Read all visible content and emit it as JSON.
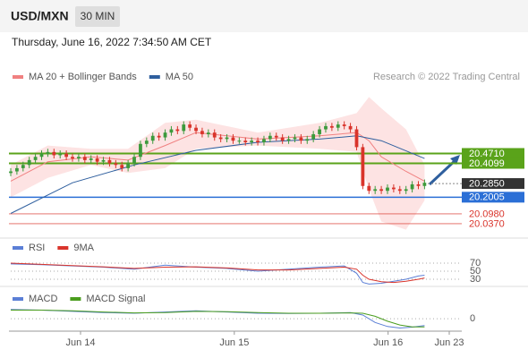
{
  "header": {
    "symbol": "USD/MXN",
    "interval": "30 MIN",
    "timestamp": "Thursday, June 16, 2022 7:34:50 AM CET"
  },
  "chart_data": [
    {
      "type": "candlestick",
      "credit": "Research © 2022 Trading Central",
      "up_color": "#3c9a3c",
      "down_color": "#d9342b",
      "xlim": [
        0,
        71
      ],
      "ylim": [
        19.97,
        21.06
      ],
      "open": [
        20.35,
        20.36,
        20.38,
        20.4,
        20.43,
        20.45,
        20.47,
        20.48,
        20.46,
        20.47,
        20.45,
        20.44,
        20.45,
        20.43,
        20.44,
        20.42,
        20.43,
        20.41,
        20.4,
        20.38,
        20.41,
        20.45,
        20.53,
        20.55,
        20.58,
        20.57,
        20.6,
        20.62,
        20.61,
        20.65,
        20.63,
        20.61,
        20.59,
        20.6,
        20.57,
        20.56,
        20.57,
        20.55,
        20.55,
        20.54,
        20.55,
        20.54,
        20.56,
        20.58,
        20.57,
        20.55,
        20.56,
        20.57,
        20.55,
        20.56,
        20.59,
        20.62,
        20.64,
        20.63,
        20.65,
        20.64,
        20.62,
        20.51,
        20.27,
        20.24,
        20.25,
        20.24,
        20.26,
        20.25,
        20.24,
        20.25,
        20.28,
        20.27
      ],
      "high": [
        20.38,
        20.4,
        20.42,
        20.45,
        20.47,
        20.49,
        20.5,
        20.5,
        20.49,
        20.49,
        20.47,
        20.47,
        20.47,
        20.46,
        20.46,
        20.45,
        20.45,
        20.43,
        20.42,
        20.43,
        20.47,
        20.55,
        20.57,
        20.6,
        20.6,
        20.62,
        20.64,
        20.64,
        20.67,
        20.67,
        20.65,
        20.63,
        20.62,
        20.62,
        20.59,
        20.59,
        20.59,
        20.57,
        20.57,
        20.57,
        20.57,
        20.58,
        20.6,
        20.6,
        20.59,
        20.58,
        20.59,
        20.59,
        20.58,
        20.61,
        20.64,
        20.66,
        20.66,
        20.67,
        20.67,
        20.66,
        20.64,
        20.53,
        20.29,
        20.27,
        20.27,
        20.28,
        20.28,
        20.27,
        20.27,
        20.3,
        20.3,
        20.31
      ],
      "low": [
        20.33,
        20.34,
        20.36,
        20.38,
        20.41,
        20.43,
        20.45,
        20.44,
        20.44,
        20.43,
        20.42,
        20.42,
        20.41,
        20.41,
        20.4,
        20.4,
        20.39,
        20.38,
        20.36,
        20.36,
        20.39,
        20.43,
        20.51,
        20.53,
        20.55,
        20.55,
        20.58,
        20.59,
        20.59,
        20.61,
        20.59,
        20.57,
        20.57,
        20.55,
        20.54,
        20.54,
        20.53,
        20.53,
        20.52,
        20.52,
        20.52,
        20.52,
        20.54,
        20.55,
        20.53,
        20.53,
        20.54,
        20.53,
        20.53,
        20.54,
        20.57,
        20.6,
        20.61,
        20.61,
        20.62,
        20.6,
        20.49,
        20.25,
        20.22,
        20.22,
        20.22,
        20.22,
        20.23,
        20.22,
        20.22,
        20.23,
        20.25,
        20.25
      ],
      "close": [
        20.36,
        20.38,
        20.4,
        20.43,
        20.45,
        20.47,
        20.48,
        20.46,
        20.47,
        20.45,
        20.44,
        20.45,
        20.43,
        20.44,
        20.42,
        20.43,
        20.41,
        20.4,
        20.38,
        20.41,
        20.45,
        20.53,
        20.55,
        20.58,
        20.57,
        20.6,
        20.62,
        20.61,
        20.65,
        20.63,
        20.61,
        20.59,
        20.6,
        20.57,
        20.56,
        20.57,
        20.55,
        20.55,
        20.54,
        20.55,
        20.54,
        20.56,
        20.58,
        20.57,
        20.55,
        20.56,
        20.57,
        20.55,
        20.56,
        20.59,
        20.62,
        20.64,
        20.63,
        20.65,
        20.64,
        20.62,
        20.51,
        20.27,
        20.24,
        20.25,
        20.24,
        20.26,
        20.25,
        20.24,
        20.25,
        20.28,
        20.27,
        20.29
      ],
      "overlays": [
        {
          "name": "MA 20 + Bollinger Bands",
          "color": "#f08080",
          "band_color": "#fde3e3",
          "x": [
            0,
            6,
            13,
            19,
            25,
            30,
            40,
            50,
            56,
            58,
            60,
            64,
            67
          ],
          "values": [
            20.3,
            20.42,
            20.45,
            20.43,
            20.52,
            20.6,
            20.56,
            20.58,
            20.6,
            20.55,
            20.45,
            20.36,
            20.3
          ],
          "upper": [
            20.4,
            20.52,
            20.5,
            20.5,
            20.66,
            20.68,
            20.6,
            20.66,
            20.72,
            20.82,
            20.75,
            20.62,
            20.4
          ],
          "lower": [
            20.2,
            20.32,
            20.4,
            20.35,
            20.38,
            20.5,
            20.52,
            20.5,
            20.48,
            20.25,
            20.05,
            20.0,
            20.18
          ]
        },
        {
          "name": "MA 50",
          "color": "#2f5f9e",
          "x": [
            0,
            10,
            20,
            30,
            40,
            50,
            56,
            60,
            67
          ],
          "values": [
            20.1,
            20.29,
            20.4,
            20.49,
            20.54,
            20.56,
            20.58,
            20.55,
            20.44
          ]
        }
      ],
      "levels": [
        {
          "value": 20.471,
          "label": "20.4710",
          "color": "#5aa31a",
          "boxed": true,
          "line": true
        },
        {
          "value": 20.4099,
          "label": "20.4099",
          "color": "#5aa31a",
          "boxed": true,
          "line": true
        },
        {
          "value": 20.285,
          "label": "20.2850",
          "color": "#333333",
          "boxed": true,
          "line": false
        },
        {
          "value": 20.2005,
          "label": "20.2005",
          "color": "#2b6fd6",
          "boxed": true,
          "line": true
        },
        {
          "value": 20.098,
          "label": "20.0980",
          "color": "#d9342b",
          "boxed": false,
          "line": true
        },
        {
          "value": 20.037,
          "label": "20.0370",
          "color": "#d9342b",
          "boxed": false,
          "line": true
        }
      ]
    },
    {
      "type": "line",
      "xlim": [
        0,
        71
      ],
      "ylim": [
        10,
        90
      ],
      "yticks": [
        70,
        50,
        30
      ],
      "series": [
        {
          "name": "RSI",
          "color": "#5b7fd6",
          "x": [
            0,
            5,
            10,
            15,
            20,
            25,
            30,
            35,
            40,
            45,
            50,
            54,
            56,
            57,
            58,
            60,
            62,
            64,
            66,
            67
          ],
          "values": [
            68,
            66,
            63,
            60,
            55,
            65,
            60,
            57,
            50,
            55,
            60,
            63,
            45,
            22,
            18,
            20,
            25,
            30,
            38,
            40
          ]
        },
        {
          "name": "9MA",
          "color": "#d9342b",
          "x": [
            0,
            5,
            10,
            15,
            20,
            25,
            30,
            35,
            40,
            45,
            50,
            54,
            56,
            57,
            58,
            60,
            62,
            64,
            66,
            67
          ],
          "values": [
            70,
            67,
            64,
            61,
            57,
            60,
            61,
            58,
            53,
            53,
            57,
            60,
            55,
            40,
            30,
            24,
            22,
            25,
            30,
            33
          ]
        }
      ]
    },
    {
      "type": "line",
      "xlim": [
        0,
        71
      ],
      "ylim": [
        -0.04,
        0.07
      ],
      "yticks": [
        0
      ],
      "xticks": [
        {
          "value": 11.3,
          "label": "Jun 14"
        },
        {
          "value": 36.2,
          "label": "Jun 15"
        },
        {
          "value": 61.1,
          "label": "Jun 16"
        },
        {
          "value": 71,
          "label": "Jun 23"
        }
      ],
      "series": [
        {
          "name": "MACD",
          "color": "#5b7fd6",
          "x": [
            0,
            5,
            10,
            15,
            20,
            25,
            30,
            35,
            40,
            45,
            50,
            55,
            57,
            59,
            61,
            63,
            65,
            67
          ],
          "values": [
            0.03,
            0.028,
            0.024,
            0.02,
            0.018,
            0.022,
            0.026,
            0.022,
            0.018,
            0.017,
            0.018,
            0.02,
            0.012,
            -0.012,
            -0.025,
            -0.03,
            -0.027,
            -0.022
          ]
        },
        {
          "name": "MACD Signal",
          "color": "#4a9d1e",
          "x": [
            0,
            5,
            10,
            15,
            20,
            25,
            30,
            35,
            40,
            45,
            50,
            55,
            57,
            59,
            61,
            63,
            65,
            67
          ],
          "values": [
            0.028,
            0.028,
            0.026,
            0.022,
            0.019,
            0.02,
            0.024,
            0.023,
            0.02,
            0.018,
            0.018,
            0.019,
            0.018,
            0.008,
            -0.008,
            -0.02,
            -0.026,
            -0.026
          ]
        }
      ]
    }
  ]
}
